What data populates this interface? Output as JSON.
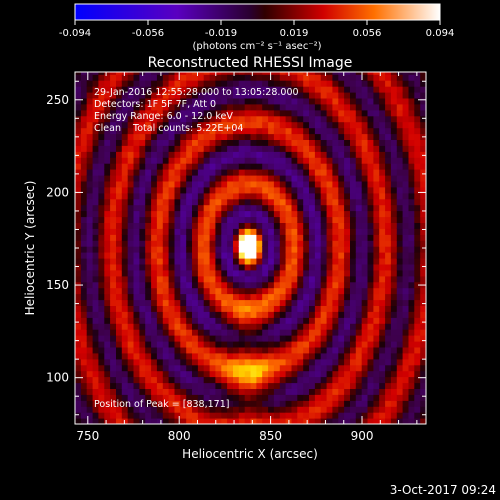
{
  "chart_data": {
    "type": "heatmap",
    "title": "Reconstructed RHESSI Image",
    "xlabel": "Heliocentric X (arcsec)",
    "ylabel": "Heliocentric Y (arcsec)",
    "x_ticks": [
      750,
      800,
      850,
      900
    ],
    "y_ticks": [
      100,
      150,
      200,
      250
    ],
    "xlim": [
      743,
      935
    ],
    "ylim": [
      75,
      265
    ],
    "colorbar": {
      "ticks": [
        "-0.094",
        "-0.056",
        "-0.019",
        "0.019",
        "0.056",
        "0.094"
      ],
      "range": [
        -0.094,
        0.094
      ],
      "unit_label": "(photons cm⁻² s⁻¹ asec⁻²)"
    },
    "annotations": {
      "time": "29-Jan-2016 12:55:28.000 to 13:05:28.000",
      "detectors": "Detectors: 1F 5F 7F, Att 0",
      "energy": "Energy Range: 6.0 - 12.0 keV",
      "clean": "Clean    Total counts: 5.22E+04",
      "peak": "Position of Peak = [838,171]"
    },
    "peak": {
      "x": 838,
      "y": 171,
      "value": 0.094
    }
  },
  "footer": {
    "timestamp": "3-Oct-2017 09:24"
  }
}
